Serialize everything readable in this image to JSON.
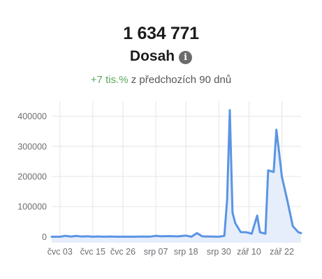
{
  "metric": {
    "value": "1 634 771",
    "label": "Dosah",
    "info_icon": "info-icon"
  },
  "change": {
    "value": "+7 tis.%",
    "suffix": "z předchozích 90 dnů",
    "positive_color": "#5aa95c"
  },
  "chart_data": {
    "type": "area",
    "line_color": "#5b94e3",
    "fill_color": "#e6eefb",
    "grid": true,
    "ylim": [
      -20000,
      450000
    ],
    "yticks": [
      0,
      100000,
      200000,
      300000,
      400000
    ],
    "ytick_labels": [
      "0",
      "100000",
      "200000",
      "300000",
      "400000"
    ],
    "xtick_positions": [
      3,
      15,
      26,
      38,
      49,
      61,
      72,
      84
    ],
    "xtick_labels": [
      "čvc 03",
      "čvc 15",
      "čvc 26",
      "srp 07",
      "srp 18",
      "srp 30",
      "zář 10",
      "zář 22"
    ],
    "xlim": [
      0,
      91
    ],
    "x": [
      0,
      3,
      5,
      7,
      9,
      11,
      13,
      15,
      17,
      19,
      21,
      24,
      27,
      30,
      33,
      36,
      38,
      40,
      43,
      46,
      49,
      51,
      53,
      55,
      58,
      61,
      63,
      64,
      65,
      66,
      67,
      69,
      71,
      73,
      75,
      76,
      78,
      79,
      81,
      82,
      83,
      84,
      86,
      88,
      90,
      91
    ],
    "values": [
      0,
      0,
      3000,
      500,
      2500,
      500,
      1500,
      0,
      800,
      0,
      500,
      0,
      300,
      0,
      500,
      300,
      3000,
      1500,
      2000,
      1000,
      3500,
      0,
      12000,
      1000,
      500,
      0,
      3000,
      120000,
      420000,
      80000,
      45000,
      15000,
      15000,
      10000,
      70000,
      15000,
      10000,
      220000,
      215000,
      355000,
      280000,
      200000,
      120000,
      35000,
      15000,
      12000
    ]
  }
}
